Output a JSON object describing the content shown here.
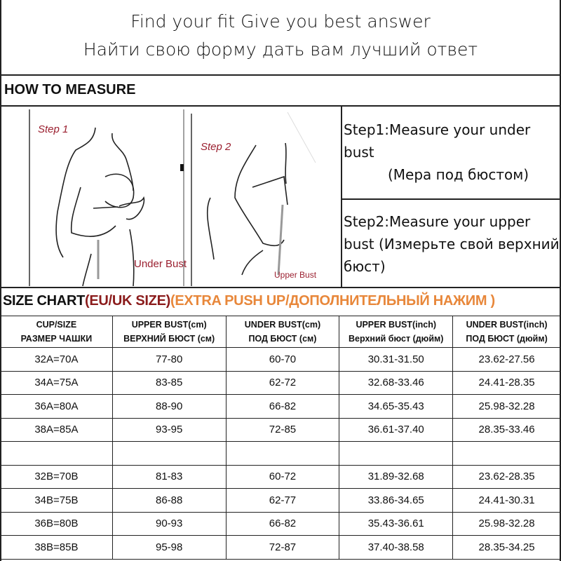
{
  "header": {
    "line1": "Find your fit Give you best answer",
    "line2": "Найти свою форму дать вам лучший ответ"
  },
  "how_to": {
    "heading": "HOW TO MEASURE",
    "step1_label": "Step 1",
    "step1_caption": "Under Bust",
    "step2_label": "Step 2",
    "step2_caption": "Upper Bust",
    "step1_text": "Step1:Measure your under bust",
    "step1_ru": "(Мера под бюстом)",
    "step2_text": "Step2:Measure your upper bust (Измерьте свой верхний бюст)"
  },
  "size_chart": {
    "title_black": "SIZE CHART",
    "title_red": "(EU/UK SIZE)",
    "title_orange": "(EXTRA PUSH UP/ДОПОЛНИТЕЛЬНЫЙ НАЖИМ )",
    "colors": {
      "red": "#8b1c1c",
      "orange": "#e8873a",
      "illus_text": "#9b2030"
    },
    "headers": [
      {
        "en": "CUP/SIZE",
        "ru": "РАЗМЕР ЧАШКИ"
      },
      {
        "en": "UPPER BUST(cm)",
        "ru": "ВЕРХНИЙ БЮСТ (см)"
      },
      {
        "en": "UNDER BUST(cm)",
        "ru": "ПОД БЮСТ (см)"
      },
      {
        "en": "UPPER BUST(inch)",
        "ru": "Верхний бюст (дюйм)"
      },
      {
        "en": "UNDER BUST(inch)",
        "ru": "ПОД БЮСТ (дюйм)"
      }
    ],
    "rows": [
      [
        "32A=70A",
        "77-80",
        "60-70",
        "30.31-31.50",
        "23.62-27.56"
      ],
      [
        "34A=75A",
        "83-85",
        "62-72",
        "32.68-33.46",
        "24.41-28.35"
      ],
      [
        "36A=80A",
        "88-90",
        "66-82",
        "34.65-35.43",
        "25.98-32.28"
      ],
      [
        "38A=85A",
        "93-95",
        "72-85",
        "36.61-37.40",
        "28.35-33.46"
      ],
      [
        "",
        "",
        "",
        "",
        ""
      ],
      [
        "32B=70B",
        "81-83",
        "60-72",
        "31.89-32.68",
        "23.62-28.35"
      ],
      [
        "34B=75B",
        "86-88",
        "62-77",
        "33.86-34.65",
        "24.41-30.31"
      ],
      [
        "36B=80B",
        "90-93",
        "66-82",
        "35.43-36.61",
        "25.98-32.28"
      ],
      [
        "38B=85B",
        "95-98",
        "72-87",
        "37.40-38.58",
        "28.35-34.25"
      ]
    ]
  }
}
